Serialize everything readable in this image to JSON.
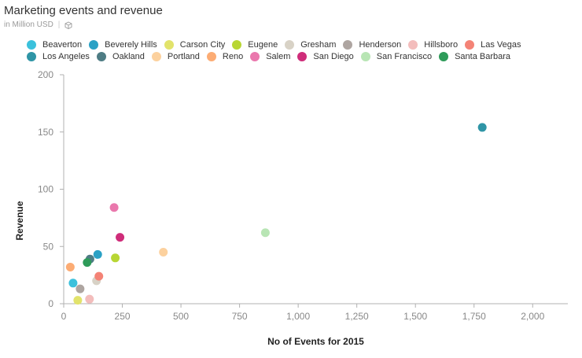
{
  "header": {
    "title": "Marketing events and revenue",
    "subtitle": "in Million USD",
    "separator": "|"
  },
  "colors": {
    "axis": "#b0b0b0",
    "tick_text": "#888888",
    "title_text": "#333333"
  },
  "chart_data": {
    "type": "scatter",
    "title": "Marketing events and revenue",
    "subtitle": "in Million USD",
    "xlabel": "No of Events for 2015",
    "ylabel": "Revenue",
    "xlim": [
      0,
      2150
    ],
    "ylim": [
      0,
      200
    ],
    "xticks": [
      0,
      250,
      500,
      750,
      1000,
      1250,
      1500,
      1750,
      2000
    ],
    "xtick_labels": [
      "0",
      "250",
      "500",
      "750",
      "1,000",
      "1,250",
      "1,500",
      "1,750",
      "2,000"
    ],
    "yticks": [
      0,
      50,
      100,
      150,
      200
    ],
    "ytick_labels": [
      "0",
      "50",
      "100",
      "150",
      "200"
    ],
    "grid": false,
    "legend_position": "top-left",
    "series": [
      {
        "name": "Beaverton",
        "color": "#3bc1dc",
        "points": [
          {
            "x": 40,
            "y": 18
          }
        ]
      },
      {
        "name": "Beverely Hills",
        "color": "#2aa1c5",
        "points": [
          {
            "x": 145,
            "y": 43
          }
        ]
      },
      {
        "name": "Carson City",
        "color": "#e2e36b",
        "points": [
          {
            "x": 60,
            "y": 3
          }
        ]
      },
      {
        "name": "Eugene",
        "color": "#b8d634",
        "points": [
          {
            "x": 220,
            "y": 40
          }
        ]
      },
      {
        "name": "Gresham",
        "color": "#d8d2c6",
        "points": [
          {
            "x": 140,
            "y": 20
          }
        ]
      },
      {
        "name": "Henderson",
        "color": "#aea5a1",
        "points": [
          {
            "x": 70,
            "y": 13
          }
        ]
      },
      {
        "name": "Hillsboro",
        "color": "#f3bdbc",
        "points": [
          {
            "x": 110,
            "y": 4
          }
        ]
      },
      {
        "name": "Las Vegas",
        "color": "#f48376",
        "points": [
          {
            "x": 150,
            "y": 24
          }
        ]
      },
      {
        "name": "Los Angeles",
        "color": "#2f95a6",
        "points": [
          {
            "x": 1785,
            "y": 154
          }
        ]
      },
      {
        "name": "Oakland",
        "color": "#4e7c84",
        "points": [
          {
            "x": 112,
            "y": 39
          }
        ]
      },
      {
        "name": "Portland",
        "color": "#fcd19e",
        "points": [
          {
            "x": 425,
            "y": 45
          }
        ]
      },
      {
        "name": "Reno",
        "color": "#fcac74",
        "points": [
          {
            "x": 28,
            "y": 32
          }
        ]
      },
      {
        "name": "Salem",
        "color": "#ea78ad",
        "points": [
          {
            "x": 215,
            "y": 84
          }
        ]
      },
      {
        "name": "San Diego",
        "color": "#cf2d7a",
        "points": [
          {
            "x": 240,
            "y": 58
          }
        ]
      },
      {
        "name": "San Francisco",
        "color": "#b8e5b4",
        "points": [
          {
            "x": 860,
            "y": 62
          }
        ]
      },
      {
        "name": "Santa Barbara",
        "color": "#2e9b59",
        "points": [
          {
            "x": 100,
            "y": 36
          }
        ]
      }
    ]
  }
}
